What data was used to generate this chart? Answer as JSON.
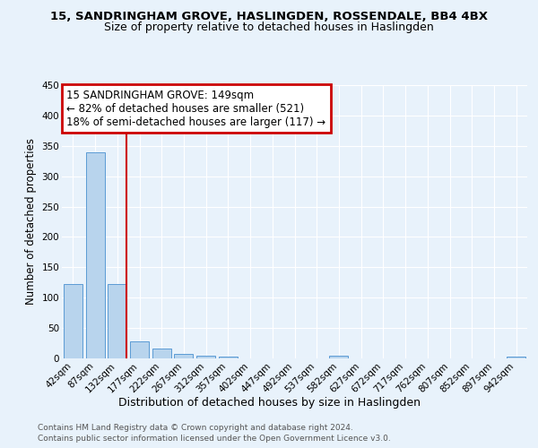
{
  "title": "15, SANDRINGHAM GROVE, HASLINGDEN, ROSSENDALE, BB4 4BX",
  "subtitle": "Size of property relative to detached houses in Haslingden",
  "xlabel": "Distribution of detached houses by size in Haslingden",
  "ylabel": "Number of detached properties",
  "bar_labels": [
    "42sqm",
    "87sqm",
    "132sqm",
    "177sqm",
    "222sqm",
    "267sqm",
    "312sqm",
    "357sqm",
    "402sqm",
    "447sqm",
    "492sqm",
    "537sqm",
    "582sqm",
    "627sqm",
    "672sqm",
    "717sqm",
    "762sqm",
    "807sqm",
    "852sqm",
    "897sqm",
    "942sqm"
  ],
  "bar_values": [
    122,
    340,
    123,
    28,
    16,
    7,
    5,
    3,
    0,
    0,
    0,
    0,
    4,
    0,
    0,
    0,
    0,
    0,
    0,
    0,
    3
  ],
  "bar_color": "#b8d4ed",
  "bar_edge_color": "#5b9bd5",
  "vline_color": "#cc0000",
  "vline_pos": 2.425,
  "ylim": [
    0,
    450
  ],
  "yticks": [
    0,
    50,
    100,
    150,
    200,
    250,
    300,
    350,
    400,
    450
  ],
  "annotation_line1": "15 SANDRINGHAM GROVE: 149sqm",
  "annotation_line2": "← 82% of detached houses are smaller (521)",
  "annotation_line3": "18% of semi-detached houses are larger (117) →",
  "annotation_box_color": "#cc0000",
  "footer1": "Contains HM Land Registry data © Crown copyright and database right 2024.",
  "footer2": "Contains public sector information licensed under the Open Government Licence v3.0.",
  "bg_color": "#e8f2fb",
  "plot_bg_color": "#e8f2fb",
  "grid_color": "#ffffff",
  "title_fontsize": 9.5,
  "subtitle_fontsize": 9,
  "ylabel_fontsize": 8.5,
  "xlabel_fontsize": 9,
  "tick_fontsize": 7.5,
  "ann_fontsize": 8.5,
  "footer_fontsize": 6.5
}
